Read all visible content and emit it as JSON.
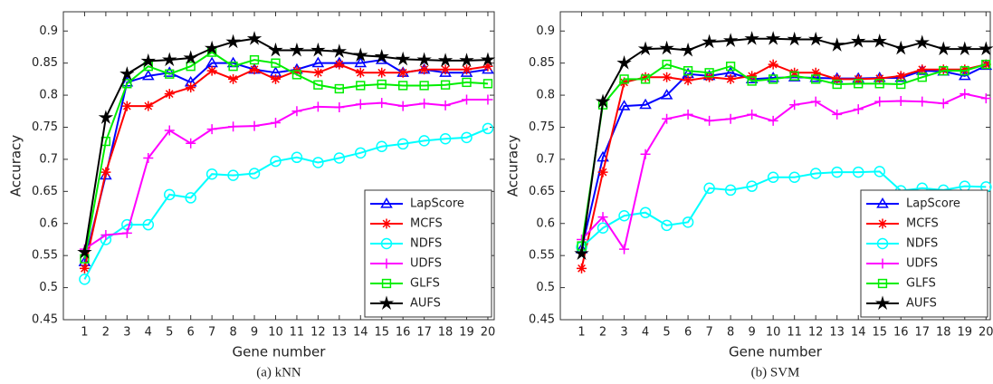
{
  "chart_data": [
    {
      "type": "line",
      "caption": "(a) kNN",
      "xlabel": "Gene number",
      "ylabel": "Accuracy",
      "x": [
        1,
        2,
        3,
        4,
        5,
        6,
        7,
        8,
        9,
        10,
        11,
        12,
        13,
        14,
        15,
        16,
        17,
        18,
        19,
        20
      ],
      "xlim": [
        0,
        20.3
      ],
      "xticks": [
        1,
        2,
        3,
        4,
        5,
        6,
        7,
        8,
        9,
        10,
        11,
        12,
        13,
        14,
        15,
        16,
        17,
        18,
        19,
        20
      ],
      "ylim": [
        0.45,
        0.93
      ],
      "yticks": [
        0.45,
        0.5,
        0.55,
        0.6,
        0.65,
        0.7,
        0.75,
        0.8,
        0.85,
        0.9
      ],
      "legend": "lower right",
      "series": [
        {
          "name": "LapScore",
          "color": "#0000ff",
          "marker": "triangle",
          "values": [
            0.54,
            0.675,
            0.82,
            0.83,
            0.835,
            0.82,
            0.85,
            0.85,
            0.84,
            0.835,
            0.84,
            0.85,
            0.85,
            0.85,
            0.855,
            0.835,
            0.84,
            0.835,
            0.835,
            0.84
          ]
        },
        {
          "name": "MCFS",
          "color": "#ff0000",
          "marker": "asterisk",
          "values": [
            0.53,
            0.68,
            0.783,
            0.783,
            0.802,
            0.812,
            0.838,
            0.825,
            0.84,
            0.825,
            0.838,
            0.835,
            0.848,
            0.835,
            0.835,
            0.835,
            0.84,
            0.84,
            0.84,
            0.845
          ]
        },
        {
          "name": "NDFS",
          "color": "#00ffff",
          "marker": "circle",
          "values": [
            0.513,
            0.575,
            0.598,
            0.598,
            0.645,
            0.64,
            0.677,
            0.675,
            0.678,
            0.697,
            0.703,
            0.695,
            0.702,
            0.71,
            0.72,
            0.724,
            0.729,
            0.732,
            0.734,
            0.748
          ]
        },
        {
          "name": "UDFS",
          "color": "#ff00ff",
          "marker": "plus",
          "values": [
            0.56,
            0.582,
            0.585,
            0.702,
            0.745,
            0.725,
            0.747,
            0.751,
            0.752,
            0.757,
            0.775,
            0.782,
            0.781,
            0.786,
            0.788,
            0.783,
            0.787,
            0.784,
            0.793,
            0.793
          ]
        },
        {
          "name": "GLFS",
          "color": "#00ee00",
          "marker": "square",
          "values": [
            0.545,
            0.728,
            0.818,
            0.845,
            0.833,
            0.845,
            0.867,
            0.845,
            0.855,
            0.85,
            0.832,
            0.816,
            0.81,
            0.815,
            0.817,
            0.815,
            0.815,
            0.816,
            0.82,
            0.818
          ]
        },
        {
          "name": "AUFS",
          "color": "#000000",
          "marker": "star",
          "values": [
            0.555,
            0.765,
            0.833,
            0.853,
            0.855,
            0.858,
            0.873,
            0.883,
            0.888,
            0.87,
            0.87,
            0.87,
            0.868,
            0.862,
            0.86,
            0.856,
            0.855,
            0.854,
            0.854,
            0.855
          ]
        }
      ]
    },
    {
      "type": "line",
      "caption": "(b) SVM",
      "xlabel": "Gene number",
      "ylabel": "Accuracy",
      "x": [
        1,
        2,
        3,
        4,
        5,
        6,
        7,
        8,
        9,
        10,
        11,
        12,
        13,
        14,
        15,
        16,
        17,
        18,
        19,
        20
      ],
      "xlim": [
        0,
        20.2
      ],
      "xticks": [
        1,
        2,
        3,
        4,
        5,
        6,
        7,
        8,
        9,
        10,
        11,
        12,
        13,
        14,
        15,
        16,
        17,
        18,
        19,
        20
      ],
      "ylim": [
        0.45,
        0.93
      ],
      "yticks": [
        0.45,
        0.5,
        0.55,
        0.6,
        0.65,
        0.7,
        0.75,
        0.8,
        0.85,
        0.9
      ],
      "legend": "lower right",
      "series": [
        {
          "name": "LapScore",
          "color": "#0000ff",
          "marker": "triangle",
          "values": [
            0.56,
            0.703,
            0.783,
            0.785,
            0.8,
            0.833,
            0.83,
            0.835,
            0.825,
            0.827,
            0.828,
            0.827,
            0.826,
            0.826,
            0.827,
            0.827,
            0.838,
            0.837,
            0.83,
            0.846
          ]
        },
        {
          "name": "MCFS",
          "color": "#ff0000",
          "marker": "asterisk",
          "values": [
            0.53,
            0.68,
            0.82,
            0.828,
            0.828,
            0.823,
            0.828,
            0.825,
            0.83,
            0.848,
            0.835,
            0.835,
            0.825,
            0.825,
            0.826,
            0.83,
            0.84,
            0.84,
            0.84,
            0.848
          ]
        },
        {
          "name": "NDFS",
          "color": "#00ffff",
          "marker": "circle",
          "values": [
            0.563,
            0.593,
            0.612,
            0.617,
            0.597,
            0.602,
            0.655,
            0.652,
            0.658,
            0.672,
            0.672,
            0.678,
            0.68,
            0.68,
            0.681,
            0.651,
            0.655,
            0.652,
            0.658,
            0.657
          ]
        },
        {
          "name": "UDFS",
          "color": "#ff00ff",
          "marker": "plus",
          "values": [
            0.575,
            0.61,
            0.56,
            0.708,
            0.763,
            0.77,
            0.76,
            0.763,
            0.77,
            0.76,
            0.785,
            0.79,
            0.77,
            0.778,
            0.79,
            0.791,
            0.79,
            0.787,
            0.802,
            0.795
          ]
        },
        {
          "name": "GLFS",
          "color": "#00ee00",
          "marker": "square",
          "values": [
            0.565,
            0.785,
            0.825,
            0.825,
            0.848,
            0.838,
            0.835,
            0.845,
            0.822,
            0.825,
            0.83,
            0.825,
            0.817,
            0.818,
            0.818,
            0.817,
            0.828,
            0.838,
            0.838,
            0.848
          ]
        },
        {
          "name": "AUFS",
          "color": "#000000",
          "marker": "star",
          "values": [
            0.553,
            0.79,
            0.85,
            0.872,
            0.873,
            0.87,
            0.883,
            0.885,
            0.888,
            0.888,
            0.887,
            0.887,
            0.878,
            0.884,
            0.884,
            0.873,
            0.882,
            0.872,
            0.872,
            0.872
          ]
        }
      ]
    }
  ]
}
